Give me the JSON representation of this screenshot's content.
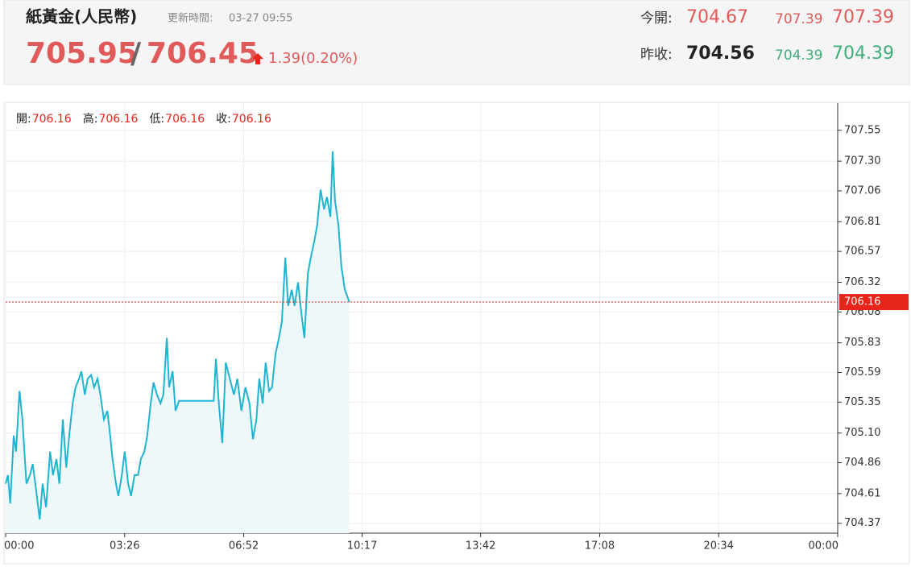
{
  "header": {
    "title": "紙黃金(人民幣)",
    "update_label": "更新時間:",
    "update_time": "03-27 09:55",
    "bid": "705.95",
    "separator": "/",
    "ask": "706.45",
    "change": "1.39(0.20%)",
    "open_label": "今開:",
    "open": "704.67",
    "high_small": "707.39",
    "high": "707.39",
    "prev_close_label": "昨收:",
    "prev_close": "704.56",
    "low_small": "704.39",
    "low": "704.39"
  },
  "chart_data": {
    "type": "line",
    "ohlc": [
      {
        "label": "開:",
        "value": "706.16"
      },
      {
        "label": "高:",
        "value": "706.16"
      },
      {
        "label": "低:",
        "value": "706.16"
      },
      {
        "label": "收:",
        "value": "706.16"
      }
    ],
    "current": 706.16,
    "current_color": "#e8251b",
    "fill_color": "#eef8fb",
    "grid": true,
    "xlim": [
      0,
      1440
    ],
    "xticks": [
      {
        "value": 0,
        "label": "00:00"
      },
      {
        "value": 206,
        "label": "03:26"
      },
      {
        "value": 412,
        "label": "06:52"
      },
      {
        "value": 617,
        "label": "10:17"
      },
      {
        "value": 822,
        "label": "13:42"
      },
      {
        "value": 1028,
        "label": "17:08"
      },
      {
        "value": 1234,
        "label": "20:34"
      },
      {
        "value": 1440,
        "label": "00:00"
      }
    ],
    "ylim": [
      704.29,
      707.77
    ],
    "yticks": [
      704.37,
      704.61,
      704.86,
      {
        "value": 705.1,
        "label": "705.10"
      },
      705.35,
      705.59,
      705.83,
      706.08,
      706.32,
      706.57,
      706.81,
      707.06,
      {
        "value": 707.3,
        "label": "707.30"
      },
      707.55
    ],
    "series": [
      {
        "color": "#1fb5d0",
        "x": [
          0,
          4,
          8,
          14,
          18,
          24,
          29,
          36,
          42,
          47,
          53,
          59,
          64,
          70,
          77,
          82,
          88,
          93,
          99,
          105,
          110,
          116,
          121,
          127,
          131,
          137,
          142,
          148,
          153,
          159,
          164,
          170,
          176,
          181,
          185,
          191,
          195,
          201,
          206,
          212,
          217,
          223,
          229,
          234,
          240,
          245,
          251,
          256,
          262,
          268,
          273,
          279,
          283,
          289,
          294,
          300,
          360,
          364,
          369,
          375,
          381,
          388,
          395,
          401,
          408,
          415,
          422,
          428,
          434,
          439,
          445,
          450,
          456,
          461,
          467,
          473,
          478,
          484,
          489,
          495,
          500,
          506,
          512,
          517,
          523,
          528,
          534,
          539,
          545,
          551,
          556,
          562,
          566,
          570,
          576,
          581,
          587,
          595
        ],
        "values": [
          704.69,
          704.76,
          704.53,
          705.08,
          704.95,
          705.44,
          705.21,
          704.69,
          704.76,
          704.85,
          704.63,
          704.4,
          704.69,
          704.5,
          704.95,
          704.76,
          704.89,
          704.69,
          705.21,
          704.82,
          705.08,
          705.34,
          705.47,
          705.54,
          705.6,
          705.41,
          705.54,
          705.57,
          705.47,
          705.54,
          705.41,
          705.21,
          705.28,
          705.08,
          704.89,
          704.69,
          704.59,
          704.76,
          704.95,
          704.69,
          704.59,
          704.76,
          704.76,
          704.89,
          704.95,
          705.08,
          705.34,
          705.51,
          705.41,
          705.34,
          705.41,
          705.87,
          705.47,
          705.6,
          705.28,
          705.36,
          705.36,
          705.7,
          705.34,
          705.02,
          705.67,
          705.54,
          705.41,
          705.54,
          705.28,
          705.47,
          705.34,
          705.05,
          705.21,
          705.54,
          705.34,
          705.67,
          705.44,
          705.47,
          705.74,
          705.87,
          706.0,
          706.52,
          706.13,
          706.26,
          706.13,
          706.32,
          706.06,
          705.87,
          706.39,
          706.52,
          706.65,
          706.78,
          707.07,
          706.91,
          707.01,
          706.85,
          707.38,
          706.98,
          706.78,
          706.45,
          706.26,
          706.16
        ]
      }
    ]
  }
}
